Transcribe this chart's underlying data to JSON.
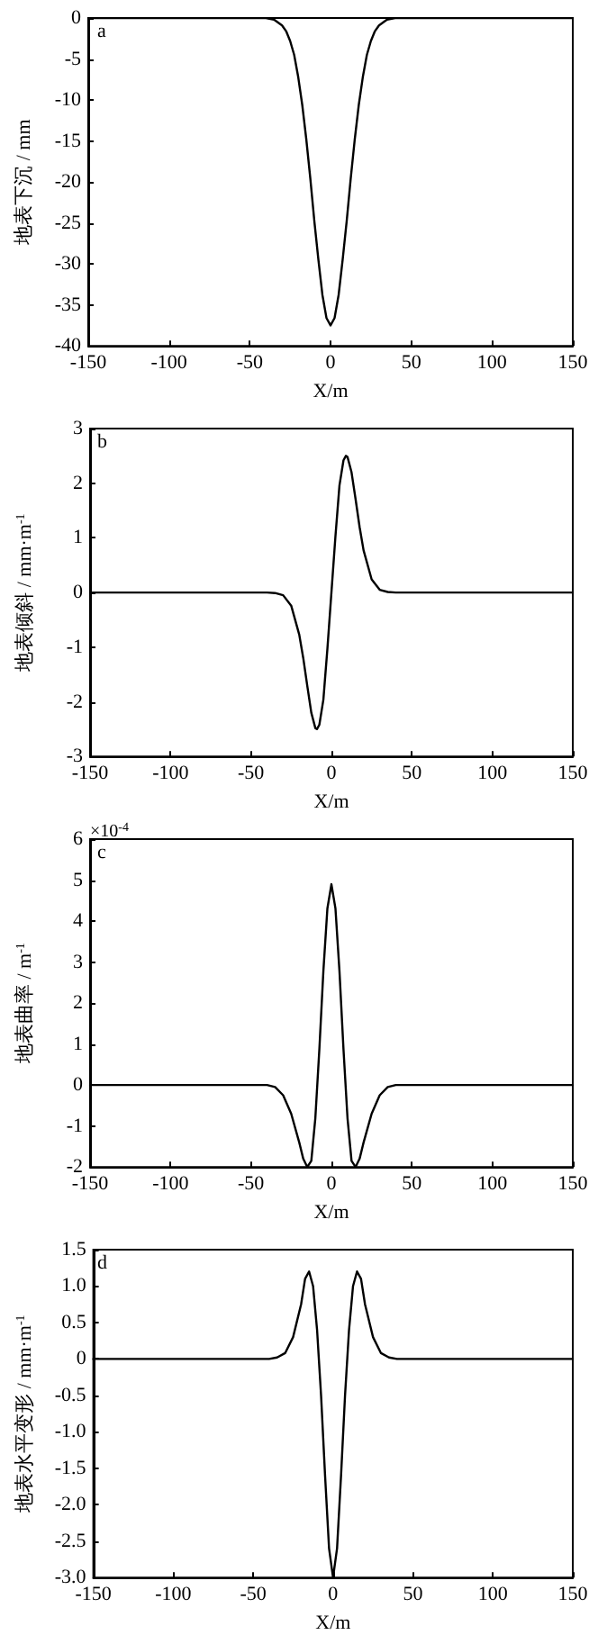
{
  "chart_data": [
    {
      "type": "line",
      "xlabel": "X/m",
      "ylabel": "地表下沉 / mm",
      "annotations": [
        "a"
      ],
      "xlim": [
        -150,
        150
      ],
      "xticks": [
        -150,
        -100,
        -50,
        0,
        50,
        100,
        150
      ],
      "ylim": [
        -40,
        0
      ],
      "yticks": [
        -40,
        -35,
        -30,
        -25,
        -20,
        -15,
        -10,
        -5,
        0
      ],
      "grid": false,
      "marker": "none",
      "line_style": "solid",
      "series": [
        {
          "color": "#000000",
          "x": [
            -150,
            -40,
            -35,
            -30,
            -27.5,
            -25,
            -22.5,
            -20,
            -17.5,
            -15,
            -12.5,
            -10,
            -7.5,
            -5,
            -2.5,
            0,
            2.5,
            5,
            7.5,
            10,
            12.5,
            15,
            17.5,
            20,
            22.5,
            25,
            27.5,
            30,
            35,
            40,
            150
          ],
          "values": [
            0,
            0,
            -0.2,
            -0.9,
            -1.6,
            -2.8,
            -4.5,
            -7.2,
            -10.6,
            -14.8,
            -19.6,
            -24.8,
            -29.5,
            -33.8,
            -36.6,
            -37.5,
            -36.6,
            -33.8,
            -29.5,
            -24.8,
            -19.6,
            -14.8,
            -10.6,
            -7.2,
            -4.5,
            -2.8,
            -1.6,
            -0.9,
            -0.2,
            0,
            0
          ]
        }
      ]
    },
    {
      "type": "line",
      "xlabel": "X/m",
      "ylabel": "地表倾斜 / mm·m$^{-1}$",
      "annotations": [
        "b"
      ],
      "xlim": [
        -150,
        150
      ],
      "xticks": [
        -150,
        -100,
        -50,
        0,
        50,
        100,
        150
      ],
      "ylim": [
        -3,
        3
      ],
      "yticks": [
        -3,
        -2,
        -1,
        0,
        1,
        2,
        3
      ],
      "grid": false,
      "marker": "none",
      "line_style": "solid",
      "series": [
        {
          "color": "#000000",
          "x": [
            -150,
            -40,
            -35,
            -30,
            -25,
            -20,
            -17.5,
            -15,
            -12.5,
            -10,
            -9,
            -7.5,
            -5,
            -2.5,
            0,
            2.5,
            5,
            7.5,
            9,
            10,
            12.5,
            15,
            17.5,
            20,
            25,
            30,
            35,
            40,
            150
          ],
          "values": [
            0,
            0,
            -0.01,
            -0.05,
            -0.24,
            -0.77,
            -1.2,
            -1.71,
            -2.2,
            -2.48,
            -2.5,
            -2.42,
            -1.96,
            -1.03,
            0,
            1.03,
            1.96,
            2.42,
            2.5,
            2.48,
            2.2,
            1.71,
            1.2,
            0.77,
            0.24,
            0.05,
            0.01,
            0,
            0
          ]
        }
      ]
    },
    {
      "type": "line",
      "xlabel": "X/m",
      "ylabel": "地表曲率 / m$^{-1}$",
      "annotations": [
        "c",
        "×10$^{-4}$"
      ],
      "xlim": [
        -150,
        150
      ],
      "xticks": [
        -150,
        -100,
        -50,
        0,
        50,
        100,
        150
      ],
      "ylim": [
        -2,
        6
      ],
      "yticks": [
        -2,
        -1,
        0,
        1,
        2,
        3,
        4,
        5,
        6
      ],
      "grid": false,
      "marker": "none",
      "line_style": "solid",
      "series": [
        {
          "color": "#000000",
          "x": [
            -150,
            -40,
            -35,
            -30,
            -25,
            -20,
            -17.5,
            -15,
            -12.5,
            -10,
            -7.5,
            -5,
            -2.5,
            0,
            2.5,
            5,
            7.5,
            10,
            12.5,
            15,
            17.5,
            20,
            25,
            30,
            35,
            40,
            150
          ],
          "values": [
            0,
            0,
            -0.05,
            -0.25,
            -0.7,
            -1.4,
            -1.8,
            -2,
            -1.85,
            -0.81,
            0.87,
            2.78,
            4.31,
            4.9,
            4.31,
            2.78,
            0.87,
            -0.81,
            -1.85,
            -2,
            -1.8,
            -1.4,
            -0.7,
            -0.25,
            -0.05,
            0,
            0
          ]
        }
      ]
    },
    {
      "type": "line",
      "xlabel": "X/m",
      "ylabel": "地表水平变形 / mm·m$^{-1}$",
      "annotations": [
        "d"
      ],
      "xlim": [
        -150,
        150
      ],
      "xticks": [
        -150,
        -100,
        -50,
        0,
        50,
        100,
        150
      ],
      "ylim": [
        -3,
        1.5
      ],
      "yticks": [
        {
          "value": -3,
          "label": "-3.0"
        },
        -2.5,
        {
          "value": -2,
          "label": "-2.0"
        },
        -1.5,
        {
          "value": -1,
          "label": "-1.0"
        },
        -0.5,
        0,
        0.5,
        {
          "value": 1,
          "label": "1.0"
        },
        1.5
      ],
      "grid": false,
      "marker": "none",
      "line_style": "solid",
      "series": [
        {
          "color": "#000000",
          "x": [
            -150,
            -40,
            -35,
            -30,
            -25,
            -20,
            -17.5,
            -15,
            -12.5,
            -10,
            -7.5,
            -5,
            -2.5,
            0,
            2.5,
            5,
            7.5,
            10,
            12.5,
            15,
            17.5,
            20,
            25,
            30,
            35,
            40,
            150
          ],
          "values": [
            0,
            0,
            0.02,
            0.08,
            0.3,
            0.75,
            1.1,
            1.2,
            1.0,
            0.4,
            -0.5,
            -1.6,
            -2.6,
            -3,
            -2.6,
            -1.6,
            -0.5,
            0.4,
            1.0,
            1.2,
            1.1,
            0.75,
            0.3,
            0.08,
            0.02,
            0,
            0
          ]
        }
      ]
    }
  ]
}
